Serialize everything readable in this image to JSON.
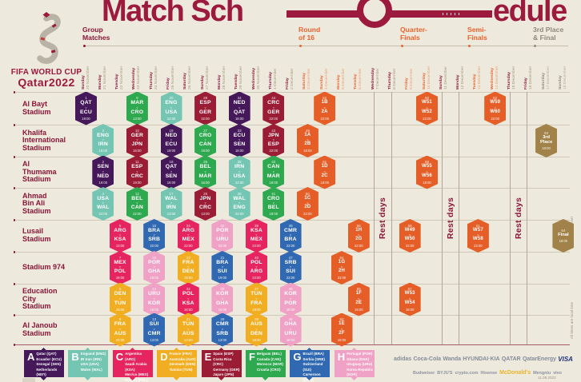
{
  "title": {
    "left": "Match Sch",
    "right": "edule"
  },
  "logo": {
    "wordmark_line1": "FIFA WORLD CUP",
    "wordmark_line2": "Qatar2022"
  },
  "phases": [
    {
      "label": "Group\nMatches",
      "type": "group"
    },
    {
      "label": "Round\nof 16",
      "type": "ko"
    },
    {
      "label": "Quarter-\nFinals",
      "type": "ko"
    },
    {
      "label": "Semi-\nFinals",
      "type": "ko"
    },
    {
      "label": "3rd Place\n& Final",
      "type": "fin"
    }
  ],
  "notes": {
    "rest_days": "Rest days",
    "w_winner": "W = Winner",
    "times_note": "All times are local time",
    "version_date": "11.08.2022"
  },
  "colors": {
    "maroon": "#8a1538",
    "orange": "#e55e28",
    "gold": "#a18349",
    "background": "#edeadd",
    "groups": {
      "A": "#45185a",
      "B": "#74c6b2",
      "C": "#e62460",
      "D": "#f2ae22",
      "E": "#9a1c35",
      "F": "#2fa94f",
      "G": "#3069b1",
      "H": "#efa2c5",
      "KO": "#e55e28",
      "FIN": "#a18349"
    }
  },
  "chart_data": {
    "type": "table",
    "title": "FIFA World Cup Qatar 2022 Match Schedule",
    "columns": [
      {
        "day": "Sunday",
        "date": "20 November",
        "phase": "group"
      },
      {
        "day": "Monday",
        "date": "21 November",
        "phase": "group"
      },
      {
        "day": "Tuesday",
        "date": "22 November",
        "phase": "group"
      },
      {
        "day": "Wednesday",
        "date": "23 November",
        "phase": "group"
      },
      {
        "day": "Thursday",
        "date": "24 November",
        "phase": "group"
      },
      {
        "day": "Friday",
        "date": "25 November",
        "phase": "group"
      },
      {
        "day": "Saturday",
        "date": "26 November",
        "phase": "group"
      },
      {
        "day": "Sunday",
        "date": "27 November",
        "phase": "group"
      },
      {
        "day": "Monday",
        "date": "28 November",
        "phase": "group"
      },
      {
        "day": "Tuesday",
        "date": "29 November",
        "phase": "group"
      },
      {
        "day": "Wednesday",
        "date": "30 November",
        "phase": "group"
      },
      {
        "day": "Thursday",
        "date": "1 December",
        "phase": "group"
      },
      {
        "day": "Friday",
        "date": "2 December",
        "phase": "group"
      },
      {
        "day": "Saturday",
        "date": "3 December",
        "phase": "r16"
      },
      {
        "day": "Sunday",
        "date": "4 December",
        "phase": "r16"
      },
      {
        "day": "Monday",
        "date": "5 December",
        "phase": "r16"
      },
      {
        "day": "Tuesday",
        "date": "6 December",
        "phase": "r16"
      },
      {
        "day": "Wednesday",
        "date": "7 December",
        "phase": "rest"
      },
      {
        "day": "Thursday",
        "date": "8 December",
        "phase": "rest"
      },
      {
        "day": "Friday",
        "date": "9 December",
        "phase": "qf"
      },
      {
        "day": "Saturday",
        "date": "10 December",
        "phase": "qf"
      },
      {
        "day": "Sunday",
        "date": "11 December",
        "phase": "rest"
      },
      {
        "day": "Monday",
        "date": "12 December",
        "phase": "rest"
      },
      {
        "day": "Tuesday",
        "date": "13 December",
        "phase": "sf"
      },
      {
        "day": "Wednesday",
        "date": "14 December",
        "phase": "sf"
      },
      {
        "day": "Thursday",
        "date": "15 December",
        "phase": "rest"
      },
      {
        "day": "Friday",
        "date": "16 December",
        "phase": "rest"
      },
      {
        "day": "Saturday",
        "date": "17 December",
        "phase": "fin"
      },
      {
        "day": "Sunday",
        "date": "18 December",
        "phase": "fin"
      }
    ],
    "stadiums": [
      {
        "name": "Al Bayt\nStadium",
        "matches": [
          {
            "n": 1,
            "a": "QAT",
            "b": "ECU",
            "t": "19:00",
            "col": 0,
            "g": "A"
          },
          {
            "n": 9,
            "a": "MAR",
            "b": "CRO",
            "t": "13:00",
            "col": 3,
            "g": "F"
          },
          {
            "n": 20,
            "a": "ENG",
            "b": "USA",
            "t": "22:00",
            "col": 5,
            "g": "B"
          },
          {
            "n": 28,
            "a": "ESP",
            "b": "GER",
            "t": "22:00",
            "col": 7,
            "g": "E"
          },
          {
            "n": 34,
            "a": "NED",
            "b": "QAT",
            "t": "18:00",
            "col": 9,
            "g": "A"
          },
          {
            "n": 44,
            "a": "CRC",
            "b": "GER",
            "t": "22:00",
            "col": 11,
            "g": "E"
          },
          {
            "n": 52,
            "a": "1B",
            "b": "2A",
            "t": "22:00",
            "col": 14,
            "g": "KO"
          },
          {
            "n": 60,
            "a": "W51",
            "b": "W52",
            "t": "22:00",
            "col": 20,
            "g": "KO"
          },
          {
            "n": 62,
            "a": "W59",
            "b": "W60",
            "t": "22:00",
            "col": 24,
            "g": "KO"
          }
        ]
      },
      {
        "name": "Khalifa\nInternational\nStadium",
        "matches": [
          {
            "n": 3,
            "a": "ENG",
            "b": "IRN",
            "t": "16:00",
            "col": 1,
            "g": "B"
          },
          {
            "n": 10,
            "a": "GER",
            "b": "JPN",
            "t": "16:00",
            "col": 3,
            "g": "E"
          },
          {
            "n": 19,
            "a": "NED",
            "b": "ECU",
            "t": "19:00",
            "col": 5,
            "g": "A"
          },
          {
            "n": 27,
            "a": "CRO",
            "b": "CAN",
            "t": "19:00",
            "col": 7,
            "g": "F"
          },
          {
            "n": 33,
            "a": "ECU",
            "b": "SEN",
            "t": "18:00",
            "col": 9,
            "g": "A"
          },
          {
            "n": 43,
            "a": "JPN",
            "b": "ESP",
            "t": "22:00",
            "col": 11,
            "g": "E"
          },
          {
            "n": 49,
            "a": "1A",
            "b": "2B",
            "t": "18:00",
            "col": 13,
            "g": "KO"
          },
          {
            "n": 63,
            "label": "3rd Place",
            "t": "18:00",
            "col": 27,
            "g": "FIN"
          }
        ]
      },
      {
        "name": "Al\nThumama\nStadium",
        "matches": [
          {
            "n": 2,
            "a": "SEN",
            "b": "NED",
            "t": "19:00",
            "col": 1,
            "g": "A"
          },
          {
            "n": 11,
            "a": "ESP",
            "b": "CRC",
            "t": "19:00",
            "col": 3,
            "g": "E"
          },
          {
            "n": 18,
            "a": "QAT",
            "b": "SEN",
            "t": "16:00",
            "col": 5,
            "g": "A"
          },
          {
            "n": 26,
            "a": "BEL",
            "b": "MAR",
            "t": "16:00",
            "col": 7,
            "g": "F"
          },
          {
            "n": 35,
            "a": "IRN",
            "b": "USA",
            "t": "22:00",
            "col": 9,
            "g": "B"
          },
          {
            "n": 42,
            "a": "CAN",
            "b": "MAR",
            "t": "18:00",
            "col": 11,
            "g": "F"
          },
          {
            "n": 51,
            "a": "1D",
            "b": "2C",
            "t": "18:00",
            "col": 14,
            "g": "KO"
          },
          {
            "n": 59,
            "a": "W55",
            "b": "W56",
            "t": "18:00",
            "col": 20,
            "g": "KO"
          }
        ]
      },
      {
        "name": "Ahmad\nBin Ali\nStadium",
        "matches": [
          {
            "n": 4,
            "a": "USA",
            "b": "WAL",
            "t": "22:00",
            "col": 1,
            "g": "B"
          },
          {
            "n": 12,
            "a": "BEL",
            "b": "CAN",
            "t": "22:00",
            "col": 3,
            "g": "F"
          },
          {
            "n": 17,
            "a": "WAL",
            "b": "IRN",
            "t": "13:00",
            "col": 5,
            "g": "B"
          },
          {
            "n": 25,
            "a": "JPN",
            "b": "CRC",
            "t": "13:00",
            "col": 7,
            "g": "E"
          },
          {
            "n": 36,
            "a": "WAL",
            "b": "ENG",
            "t": "22:00",
            "col": 9,
            "g": "B"
          },
          {
            "n": 41,
            "a": "CRO",
            "b": "BEL",
            "t": "18:00",
            "col": 11,
            "g": "F"
          },
          {
            "n": 50,
            "a": "1C",
            "b": "2D",
            "t": "22:00",
            "col": 13,
            "g": "KO"
          }
        ]
      },
      {
        "name": "Lusail\nStadium",
        "matches": [
          {
            "n": 5,
            "a": "ARG",
            "b": "KSA",
            "t": "13:00",
            "col": 2,
            "g": "C"
          },
          {
            "n": 16,
            "a": "BRA",
            "b": "SRB",
            "t": "22:00",
            "col": 4,
            "g": "G"
          },
          {
            "n": 24,
            "a": "ARG",
            "b": "MEX",
            "t": "22:00",
            "col": 6,
            "g": "C"
          },
          {
            "n": 32,
            "a": "POR",
            "b": "URU",
            "t": "22:00",
            "col": 8,
            "g": "H"
          },
          {
            "n": 39,
            "a": "KSA",
            "b": "MEX",
            "t": "22:00",
            "col": 10,
            "g": "C"
          },
          {
            "n": 48,
            "a": "CMR",
            "b": "BRA",
            "t": "22:00",
            "col": 12,
            "g": "G"
          },
          {
            "n": 56,
            "a": "1H",
            "b": "2G",
            "t": "22:00",
            "col": 16,
            "g": "KO"
          },
          {
            "n": 58,
            "a": "W49",
            "b": "W50",
            "t": "22:00",
            "col": 19,
            "g": "KO"
          },
          {
            "n": 61,
            "a": "W57",
            "b": "W58",
            "t": "22:00",
            "col": 23,
            "g": "KO"
          },
          {
            "n": 64,
            "label": "Final",
            "t": "18:00",
            "col": 28,
            "g": "FIN"
          }
        ]
      },
      {
        "name": "Stadium 974",
        "matches": [
          {
            "n": 7,
            "a": "MEX",
            "b": "POL",
            "t": "19:00",
            "col": 2,
            "g": "C"
          },
          {
            "n": 15,
            "a": "POR",
            "b": "GHA",
            "t": "19:00",
            "col": 4,
            "g": "H"
          },
          {
            "n": 23,
            "a": "FRA",
            "b": "DEN",
            "t": "19:00",
            "col": 6,
            "g": "D"
          },
          {
            "n": 31,
            "a": "BRA",
            "b": "SUI",
            "t": "19:00",
            "col": 8,
            "g": "G"
          },
          {
            "n": 40,
            "a": "POL",
            "b": "ARG",
            "t": "22:00",
            "col": 10,
            "g": "C"
          },
          {
            "n": 47,
            "a": "SRB",
            "b": "SUI",
            "t": "22:00",
            "col": 12,
            "g": "G"
          },
          {
            "n": 54,
            "a": "1G",
            "b": "2H",
            "t": "22:00",
            "col": 15,
            "g": "KO"
          }
        ]
      },
      {
        "name": "Education\nCity\nStadium",
        "matches": [
          {
            "n": 6,
            "a": "DEN",
            "b": "TUN",
            "t": "16:00",
            "col": 2,
            "g": "D"
          },
          {
            "n": 14,
            "a": "URU",
            "b": "KOR",
            "t": "16:00",
            "col": 4,
            "g": "H"
          },
          {
            "n": 22,
            "a": "POL",
            "b": "KSA",
            "t": "16:00",
            "col": 6,
            "g": "C"
          },
          {
            "n": 30,
            "a": "KOR",
            "b": "GHA",
            "t": "16:00",
            "col": 8,
            "g": "H"
          },
          {
            "n": 37,
            "a": "TUN",
            "b": "FRA",
            "t": "18:00",
            "col": 10,
            "g": "D"
          },
          {
            "n": 46,
            "a": "KOR",
            "b": "POR",
            "t": "18:00",
            "col": 12,
            "g": "H"
          },
          {
            "n": 55,
            "a": "1F",
            "b": "2E",
            "t": "18:00",
            "col": 16,
            "g": "KO"
          },
          {
            "n": 57,
            "a": "W53",
            "b": "W54",
            "t": "18:00",
            "col": 19,
            "g": "KO"
          }
        ]
      },
      {
        "name": "Al Janoub\nStadium",
        "matches": [
          {
            "n": 8,
            "a": "FRA",
            "b": "AUS",
            "t": "22:00",
            "col": 2,
            "g": "D"
          },
          {
            "n": 13,
            "a": "SUI",
            "b": "CMR",
            "t": "13:00",
            "col": 4,
            "g": "G"
          },
          {
            "n": 21,
            "a": "TUN",
            "b": "AUS",
            "t": "13:00",
            "col": 6,
            "g": "D"
          },
          {
            "n": 29,
            "a": "CMR",
            "b": "SRB",
            "t": "13:00",
            "col": 8,
            "g": "G"
          },
          {
            "n": 38,
            "a": "AUS",
            "b": "DEN",
            "t": "18:00",
            "col": 10,
            "g": "D"
          },
          {
            "n": 45,
            "a": "GHA",
            "b": "URU",
            "t": "18:00",
            "col": 12,
            "g": "H"
          },
          {
            "n": 53,
            "a": "1E",
            "b": "2F",
            "t": "18:00",
            "col": 15,
            "g": "KO"
          }
        ]
      }
    ],
    "groups": [
      {
        "letter": "A",
        "teams": [
          "Qatar (QAT)",
          "Ecuador (ECU)",
          "Senegal (SEN)",
          "Netherlands (NED)"
        ]
      },
      {
        "letter": "B",
        "teams": [
          "England (ENG)",
          "IR Iran (IRN)",
          "USA (USA)",
          "Wales (WAL)"
        ]
      },
      {
        "letter": "C",
        "teams": [
          "Argentina (ARG)",
          "Saudi Arabia (KSA)",
          "Mexico (MEX)",
          "Poland (POL)"
        ]
      },
      {
        "letter": "D",
        "teams": [
          "France (FRA)",
          "Australia (AUS)",
          "Denmark (DEN)",
          "Tunisia (TUN)"
        ]
      },
      {
        "letter": "E",
        "teams": [
          "Spain (ESP)",
          "Costa Rica (CRC)",
          "Germany (GER)",
          "Japan (JPN)"
        ]
      },
      {
        "letter": "F",
        "teams": [
          "Belgium (BEL)",
          "Canada (CAN)",
          "Morocco (MAR)",
          "Croatia (CRO)"
        ]
      },
      {
        "letter": "G",
        "teams": [
          "Brazil (BRA)",
          "Serbia (SRB)",
          "Switzerland (SUI)",
          "Cameroon (CMR)"
        ]
      },
      {
        "letter": "H",
        "teams": [
          "Portugal (POR)",
          "Ghana (GHA)",
          "Uruguay (URU)",
          "Korea Republic (KOR)"
        ]
      }
    ]
  },
  "sponsors": {
    "row1": [
      "adidas",
      "Coca-Cola",
      "Wanda",
      "HYUNDAI·KIA",
      "QATAR",
      "QatarEnergy",
      "VISA"
    ],
    "row2": [
      "Budweiser",
      "BYJU'S",
      "crypto.com",
      "Hisense",
      "McDonald's",
      "Mengniu",
      "vivo"
    ]
  }
}
